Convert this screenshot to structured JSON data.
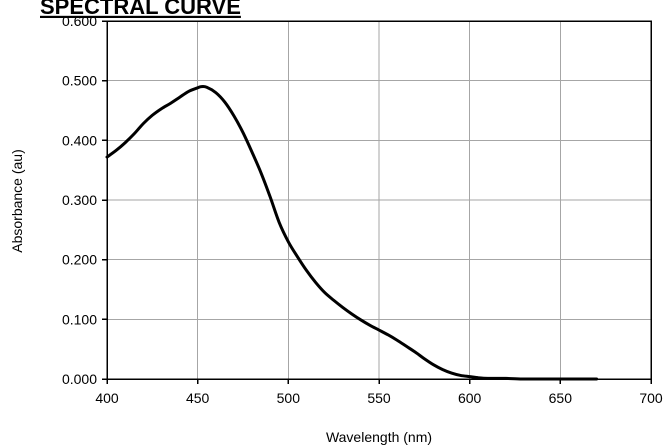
{
  "chart_data": {
    "type": "line",
    "title": "SPECTRAL CURVE",
    "xlabel": "Wavelength (nm)",
    "ylabel": "Absorbance (au)",
    "xlim": [
      400,
      700
    ],
    "ylim": [
      0.0,
      0.6
    ],
    "x_ticks": [
      400,
      450,
      500,
      550,
      600,
      650,
      700
    ],
    "x_tick_labels": [
      "400",
      "450",
      "500",
      "550",
      "600",
      "650",
      "700"
    ],
    "y_ticks": [
      0.0,
      0.1,
      0.2,
      0.3,
      0.4,
      0.5,
      0.6
    ],
    "y_tick_labels": [
      "0.000",
      "0.100",
      "0.200",
      "0.300",
      "0.400",
      "0.500",
      "0.600"
    ],
    "grid": true,
    "legend": "none",
    "series": [
      {
        "color": "#000000",
        "x": [
          400,
          405,
          410,
          415,
          420,
          425,
          430,
          435,
          440,
          445,
          450,
          452,
          455,
          460,
          465,
          470,
          475,
          480,
          485,
          490,
          495,
          500,
          505,
          510,
          515,
          520,
          525,
          530,
          535,
          540,
          545,
          550,
          555,
          560,
          565,
          570,
          575,
          580,
          585,
          590,
          595,
          600,
          605,
          610,
          620,
          630,
          640,
          650,
          660,
          670
        ],
        "y": [
          0.372,
          0.383,
          0.396,
          0.411,
          0.428,
          0.442,
          0.453,
          0.462,
          0.472,
          0.482,
          0.488,
          0.49,
          0.489,
          0.48,
          0.464,
          0.441,
          0.413,
          0.38,
          0.345,
          0.305,
          0.262,
          0.23,
          0.205,
          0.182,
          0.162,
          0.145,
          0.132,
          0.12,
          0.109,
          0.099,
          0.09,
          0.082,
          0.074,
          0.065,
          0.055,
          0.045,
          0.034,
          0.024,
          0.016,
          0.01,
          0.006,
          0.004,
          0.002,
          0.001,
          0.001,
          0.0,
          0.0,
          0.0,
          0.0,
          0.0
        ]
      }
    ]
  }
}
